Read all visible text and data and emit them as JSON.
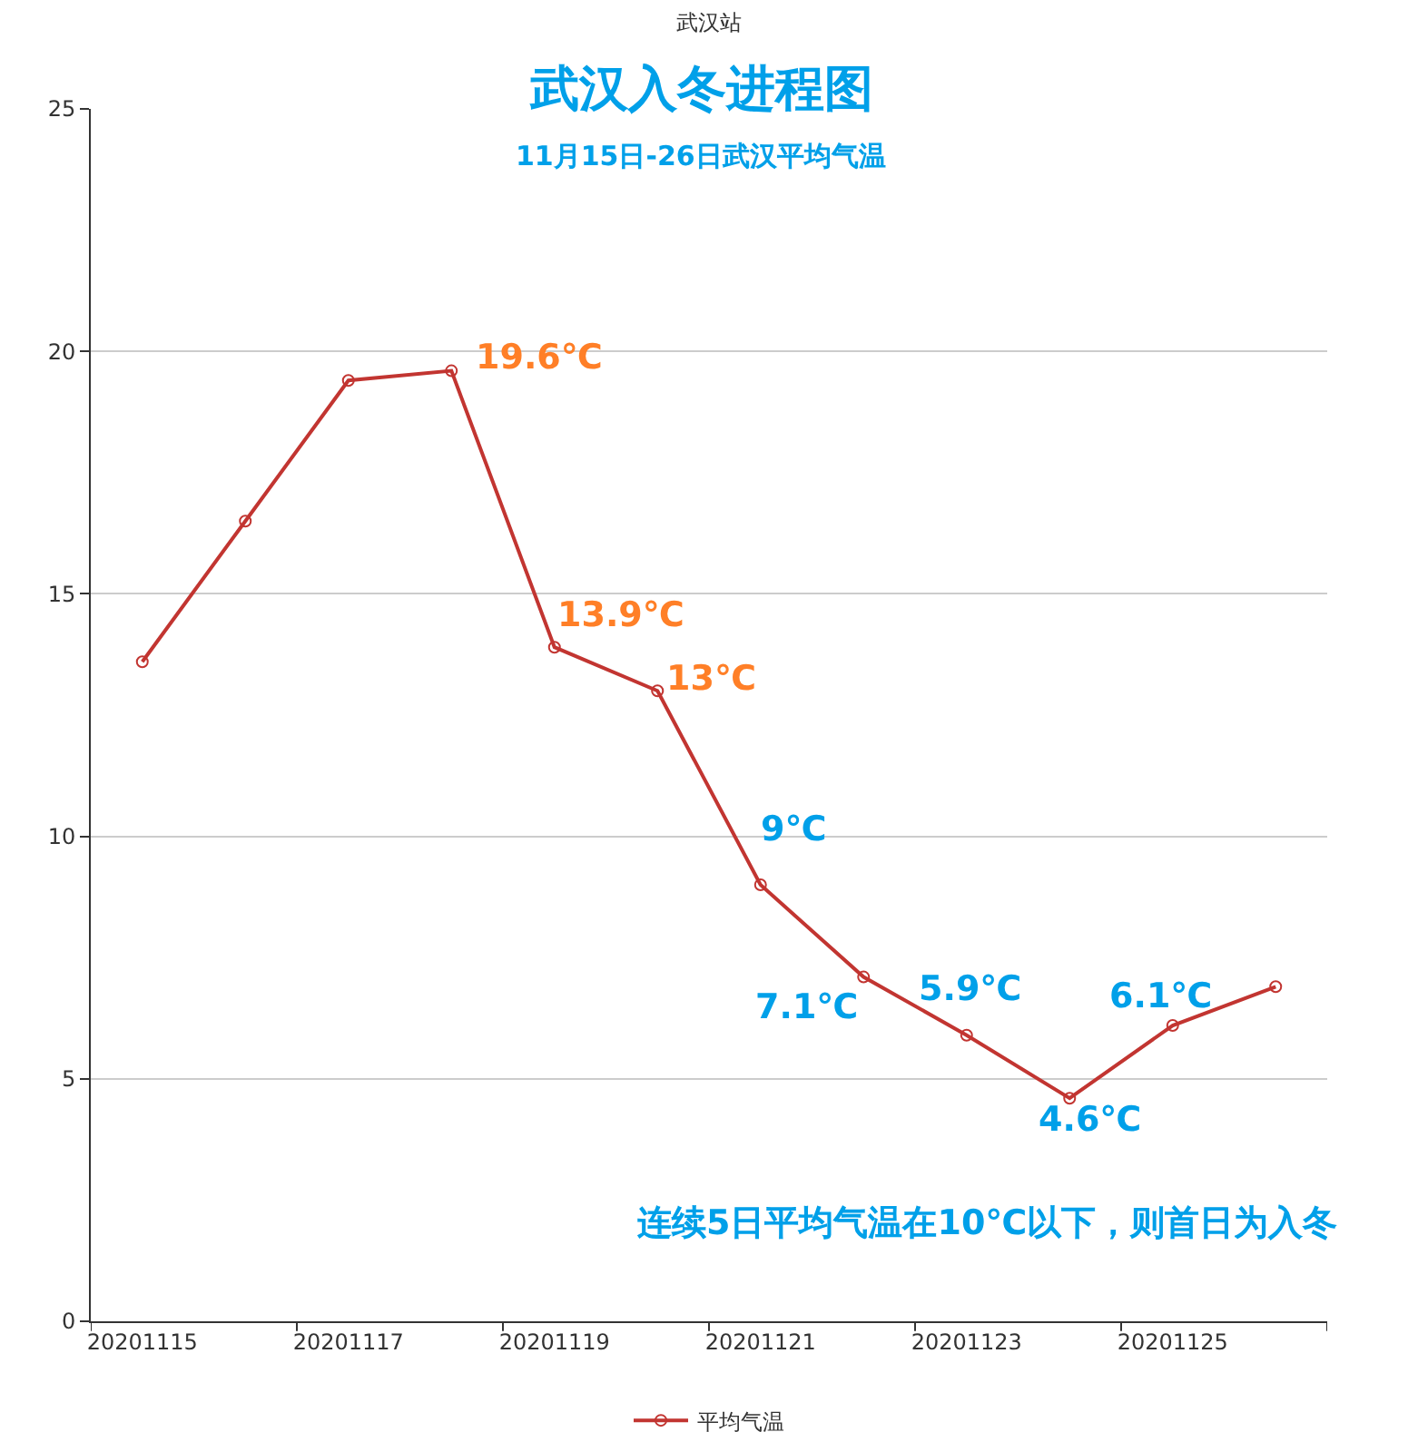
{
  "chart_data": {
    "type": "line",
    "title": "武汉站",
    "subtitle": "武汉入冬进程图",
    "categories": [
      "20201115",
      null,
      "20201117",
      null,
      "20201119",
      null,
      "20201121",
      null,
      "20201123",
      null,
      "20201125",
      null
    ],
    "series": [
      {
        "name": "平均气温",
        "color": "#c23531",
        "values": [
          13.6,
          16.5,
          19.4,
          19.6,
          13.9,
          13.0,
          9.0,
          7.1,
          5.9,
          4.6,
          6.1,
          6.9
        ]
      }
    ],
    "ylim": [
      0,
      25
    ],
    "yticks": [
      0,
      5,
      10,
      15,
      20,
      25
    ],
    "grid": "y",
    "legend": "bottom",
    "marker": "circle",
    "line_style": "solid",
    "annotations": [
      "11月15日-26日武汉平均气温",
      "19.6℃",
      {
        "text": "13.9℃",
        "x": "20201119",
        "y": 13.9
      },
      "13℃",
      {
        "text": "9℃",
        "x": "20201121",
        "y": 9.0
      },
      "7.1℃",
      {
        "text": "5.9℃",
        "x": "20201123",
        "y": 5.9
      },
      {
        "text": "6.1℃",
        "x": "20201125",
        "y": 6.1
      },
      "4.6℃",
      "连续5日平均气温在10℃以下，则首日为入冬"
    ]
  }
}
